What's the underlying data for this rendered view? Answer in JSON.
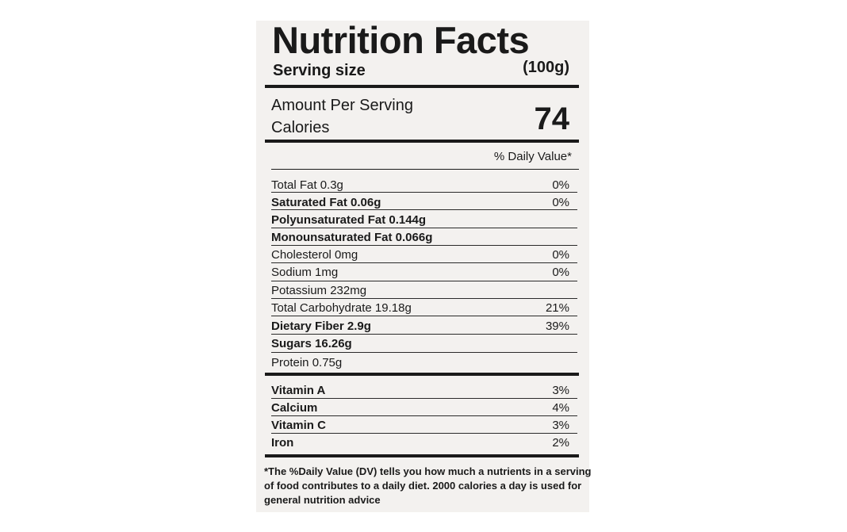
{
  "header": {
    "title": "Nutrition Facts",
    "serving_label": "Serving size",
    "serving_value": "(100g)"
  },
  "calories": {
    "amount_label": "Amount Per Serving",
    "label": "Calories",
    "value": "74"
  },
  "daily_value_header": "% Daily Value*",
  "nutrients": [
    {
      "name": "Total Fat 0.3g",
      "dv": "0%"
    },
    {
      "name": "Saturated Fat 0.06g",
      "dv": "0%"
    },
    {
      "name": "Polyunsaturated Fat 0.144g",
      "dv": ""
    },
    {
      "name": "Monounsaturated Fat 0.066g",
      "dv": ""
    },
    {
      "name": "Cholesterol 0mg",
      "dv": "0%"
    },
    {
      "name": "Sodium 1mg",
      "dv": "0%"
    },
    {
      "name": "Potassium 232mg",
      "dv": ""
    },
    {
      "name": "Total Carbohydrate 19.18g",
      "dv": "21%"
    },
    {
      "name": "Dietary Fiber 2.9g",
      "dv": "39%"
    },
    {
      "name": "Sugars 16.26g",
      "dv": ""
    },
    {
      "name": "Protein 0.75g",
      "dv": ""
    }
  ],
  "vitamins": [
    {
      "name": "Vitamin A",
      "dv": "3%"
    },
    {
      "name": "Calcium",
      "dv": "4%"
    },
    {
      "name": "Vitamin C",
      "dv": "3%"
    },
    {
      "name": "Iron",
      "dv": "2%"
    }
  ],
  "footnote": {
    "line1": "*The %Daily Value (DV) tells you how much a nutrients in a serving",
    "line2": "of food contributes to a daily diet. 2000 calories a day is used for",
    "line3": "general nutrition advice"
  }
}
